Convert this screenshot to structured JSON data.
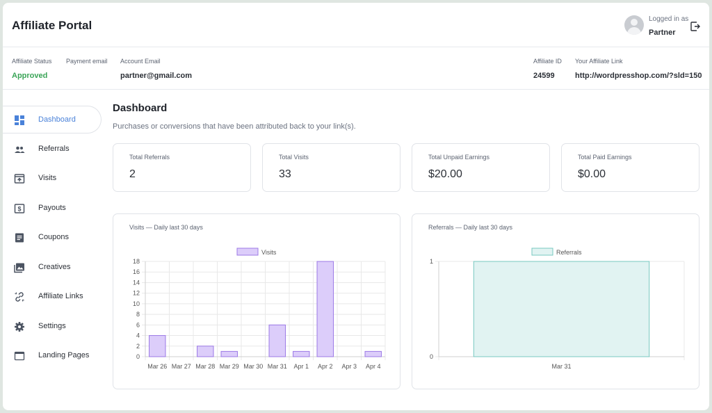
{
  "header": {
    "title": "Affiliate Portal",
    "logged_in_label": "Logged in as",
    "user_name": "Partner"
  },
  "info": {
    "status_label": "Affiliate Status",
    "status_value": "Approved",
    "payment_email_label": "Payment email",
    "payment_email_value": "",
    "account_email_label": "Account Email",
    "account_email_value": "partner@gmail.com",
    "affiliate_id_label": "Affiliate ID",
    "affiliate_id_value": "24599",
    "link_label": "Your Affiliate Link",
    "link_value": "http://wordpresshop.com/?sld=150"
  },
  "sidebar": {
    "items": [
      {
        "label": "Dashboard",
        "icon": "dashboard-icon",
        "active": true
      },
      {
        "label": "Referrals",
        "icon": "people-icon"
      },
      {
        "label": "Visits",
        "icon": "visits-icon"
      },
      {
        "label": "Payouts",
        "icon": "payouts-icon"
      },
      {
        "label": "Coupons",
        "icon": "coupons-icon"
      },
      {
        "label": "Creatives",
        "icon": "image-icon"
      },
      {
        "label": "Affiliate Links",
        "icon": "link-icon"
      },
      {
        "label": "Settings",
        "icon": "gear-icon"
      },
      {
        "label": "Landing Pages",
        "icon": "window-icon"
      }
    ]
  },
  "main": {
    "title": "Dashboard",
    "subtitle": "Purchases or conversions that have been attributed back to your link(s).",
    "stats": [
      {
        "label": "Total Referrals",
        "value": "2"
      },
      {
        "label": "Total Visits",
        "value": "33"
      },
      {
        "label": "Total Unpaid Earnings",
        "value": "$20.00"
      },
      {
        "label": "Total Paid Earnings",
        "value": "$0.00"
      }
    ]
  },
  "colors": {
    "accent": "#4a82d9",
    "approved": "#3aa457",
    "visits_fill": "#dccdfa",
    "visits_stroke": "#9c79e6",
    "referrals_fill": "#e1f3f2",
    "referrals_stroke": "#78c8c0"
  },
  "chart_data": [
    {
      "type": "bar",
      "title": "Visits — Daily last 30 days",
      "categories": [
        "Mar 26",
        "Mar 27",
        "Mar 28",
        "Mar 29",
        "Mar 30",
        "Mar 31",
        "Apr 1",
        "Apr 2",
        "Apr 3",
        "Apr 4"
      ],
      "series": [
        {
          "name": "Visits",
          "values": [
            4,
            0,
            2,
            1,
            0,
            6,
            1,
            18,
            0,
            1
          ]
        }
      ],
      "yticks": [
        0,
        2,
        4,
        6,
        8,
        10,
        12,
        14,
        16,
        18
      ],
      "ylim": [
        0,
        18
      ],
      "grid": true,
      "legend": "top"
    },
    {
      "type": "bar",
      "title": "Referrals — Daily last 30 days",
      "categories": [
        "Mar 31"
      ],
      "series": [
        {
          "name": "Referrals",
          "values": [
            1
          ]
        }
      ],
      "yticks": [
        0,
        1
      ],
      "ylim": [
        0,
        1
      ],
      "grid": true,
      "legend": "top"
    }
  ]
}
